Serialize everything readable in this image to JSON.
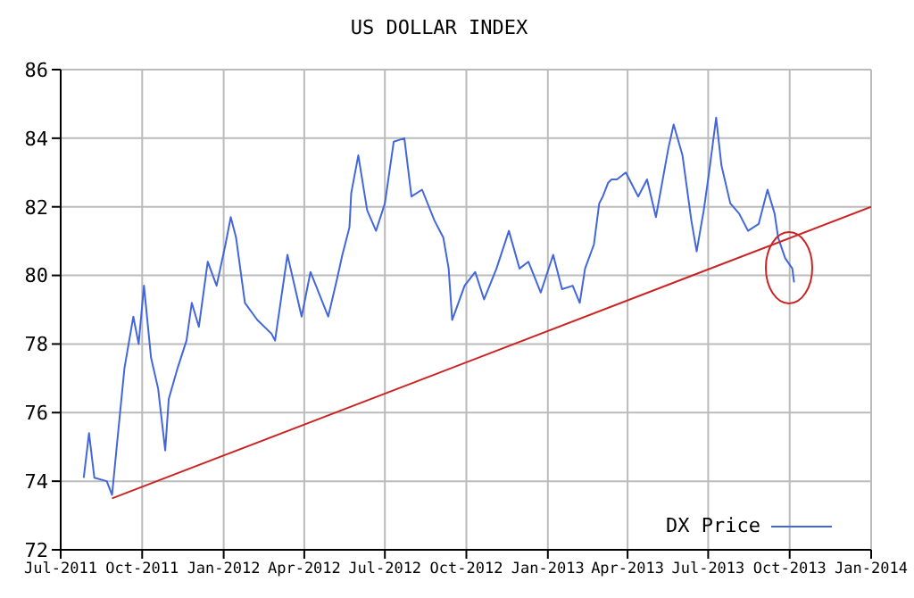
{
  "chart_data": {
    "type": "line",
    "title": "US DOLLAR INDEX",
    "x": [
      "2011-07-27",
      "2011-08-02",
      "2011-08-08",
      "2011-08-22",
      "2011-08-28",
      "2011-09-03",
      "2011-09-11",
      "2011-09-21",
      "2011-09-27",
      "2011-10-03",
      "2011-10-11",
      "2011-10-19",
      "2011-10-27",
      "2011-10-31",
      "2011-11-10",
      "2011-11-20",
      "2011-11-26",
      "2011-12-04",
      "2011-12-14",
      "2011-12-24",
      "2012-01-03",
      "2012-01-09",
      "2012-01-15",
      "2012-01-25",
      "2012-02-08",
      "2012-02-24",
      "2012-02-28",
      "2012-03-13",
      "2012-03-29",
      "2012-04-08",
      "2012-04-28",
      "2012-05-08",
      "2012-05-14",
      "2012-05-22",
      "2012-05-24",
      "2012-06-01",
      "2012-06-11",
      "2012-06-21",
      "2012-07-01",
      "2012-07-11",
      "2012-07-23",
      "2012-07-31",
      "2012-08-12",
      "2012-08-26",
      "2012-09-05",
      "2012-09-11",
      "2012-09-15",
      "2012-09-29",
      "2012-10-11",
      "2012-10-21",
      "2012-11-04",
      "2012-11-18",
      "2012-11-30",
      "2012-12-10",
      "2012-12-24",
      "2013-01-07",
      "2013-01-17",
      "2013-01-29",
      "2013-02-06",
      "2013-02-12",
      "2013-02-22",
      "2013-02-28",
      "2013-03-04",
      "2013-03-10",
      "2013-03-14",
      "2013-03-20",
      "2013-03-30",
      "2013-04-13",
      "2013-04-23",
      "2013-05-03",
      "2013-05-17",
      "2013-05-23",
      "2013-06-02",
      "2013-06-12",
      "2013-06-18",
      "2013-06-26",
      "2013-07-02",
      "2013-07-10",
      "2013-07-16",
      "2013-07-26",
      "2013-08-05",
      "2013-08-15",
      "2013-08-27",
      "2013-09-06",
      "2013-09-14",
      "2013-09-18",
      "2013-09-26",
      "2013-10-04",
      "2013-10-06"
    ],
    "series": [
      {
        "name": "DX Price",
        "color": "#4466dd",
        "values": [
          74.1,
          75.4,
          74.1,
          74.0,
          73.6,
          75.2,
          77.3,
          78.8,
          78.0,
          79.7,
          77.6,
          76.7,
          74.9,
          76.4,
          77.3,
          78.1,
          79.2,
          78.5,
          80.4,
          79.7,
          80.9,
          81.7,
          81.1,
          79.2,
          78.7,
          78.3,
          78.1,
          80.6,
          78.8,
          80.1,
          78.8,
          79.9,
          80.6,
          81.4,
          82.4,
          83.5,
          81.9,
          81.3,
          82.1,
          83.9,
          84.0,
          82.3,
          82.5,
          81.6,
          81.1,
          80.2,
          78.7,
          79.7,
          80.1,
          79.3,
          80.2,
          81.3,
          80.2,
          80.4,
          79.5,
          80.6,
          79.6,
          79.7,
          79.2,
          80.2,
          80.9,
          82.1,
          82.3,
          82.7,
          82.8,
          82.8,
          83.0,
          82.3,
          82.8,
          81.7,
          83.7,
          84.4,
          83.5,
          81.6,
          80.7,
          81.9,
          83.0,
          84.6,
          83.2,
          82.1,
          81.8,
          81.3,
          81.5,
          82.5,
          81.8,
          81.1,
          80.5,
          80.2,
          79.8
        ]
      },
      {
        "type": "line",
        "color": "#cc2222",
        "x": [
          "2011-08-28",
          "2014-01-01"
        ],
        "values": [
          73.5,
          82.0
        ]
      }
    ],
    "xlim": [
      "2011-07-01",
      "2014-01-01"
    ],
    "xticks": [
      {
        "value": "2011-07-01",
        "label": "Jul-2011"
      },
      {
        "value": "2011-10-01",
        "label": "Oct-2011"
      },
      {
        "value": "2012-01-01",
        "label": "Jan-2012"
      },
      {
        "value": "2012-04-01",
        "label": "Apr-2012"
      },
      {
        "value": "2012-07-01",
        "label": "Jul-2012"
      },
      {
        "value": "2012-10-01",
        "label": "Oct-2012"
      },
      {
        "value": "2013-01-01",
        "label": "Jan-2013"
      },
      {
        "value": "2013-04-01",
        "label": "Apr-2013"
      },
      {
        "value": "2013-07-01",
        "label": "Jul-2013"
      },
      {
        "value": "2013-10-01",
        "label": "Oct-2013"
      },
      {
        "value": "2014-01-01",
        "label": "Jan-2014"
      }
    ],
    "ylim": [
      72,
      86
    ],
    "yticks": [
      72,
      74,
      76,
      78,
      80,
      82,
      84,
      86
    ],
    "grid": true,
    "legend": "bottom right",
    "marker": "none",
    "line_style": "solid"
  }
}
